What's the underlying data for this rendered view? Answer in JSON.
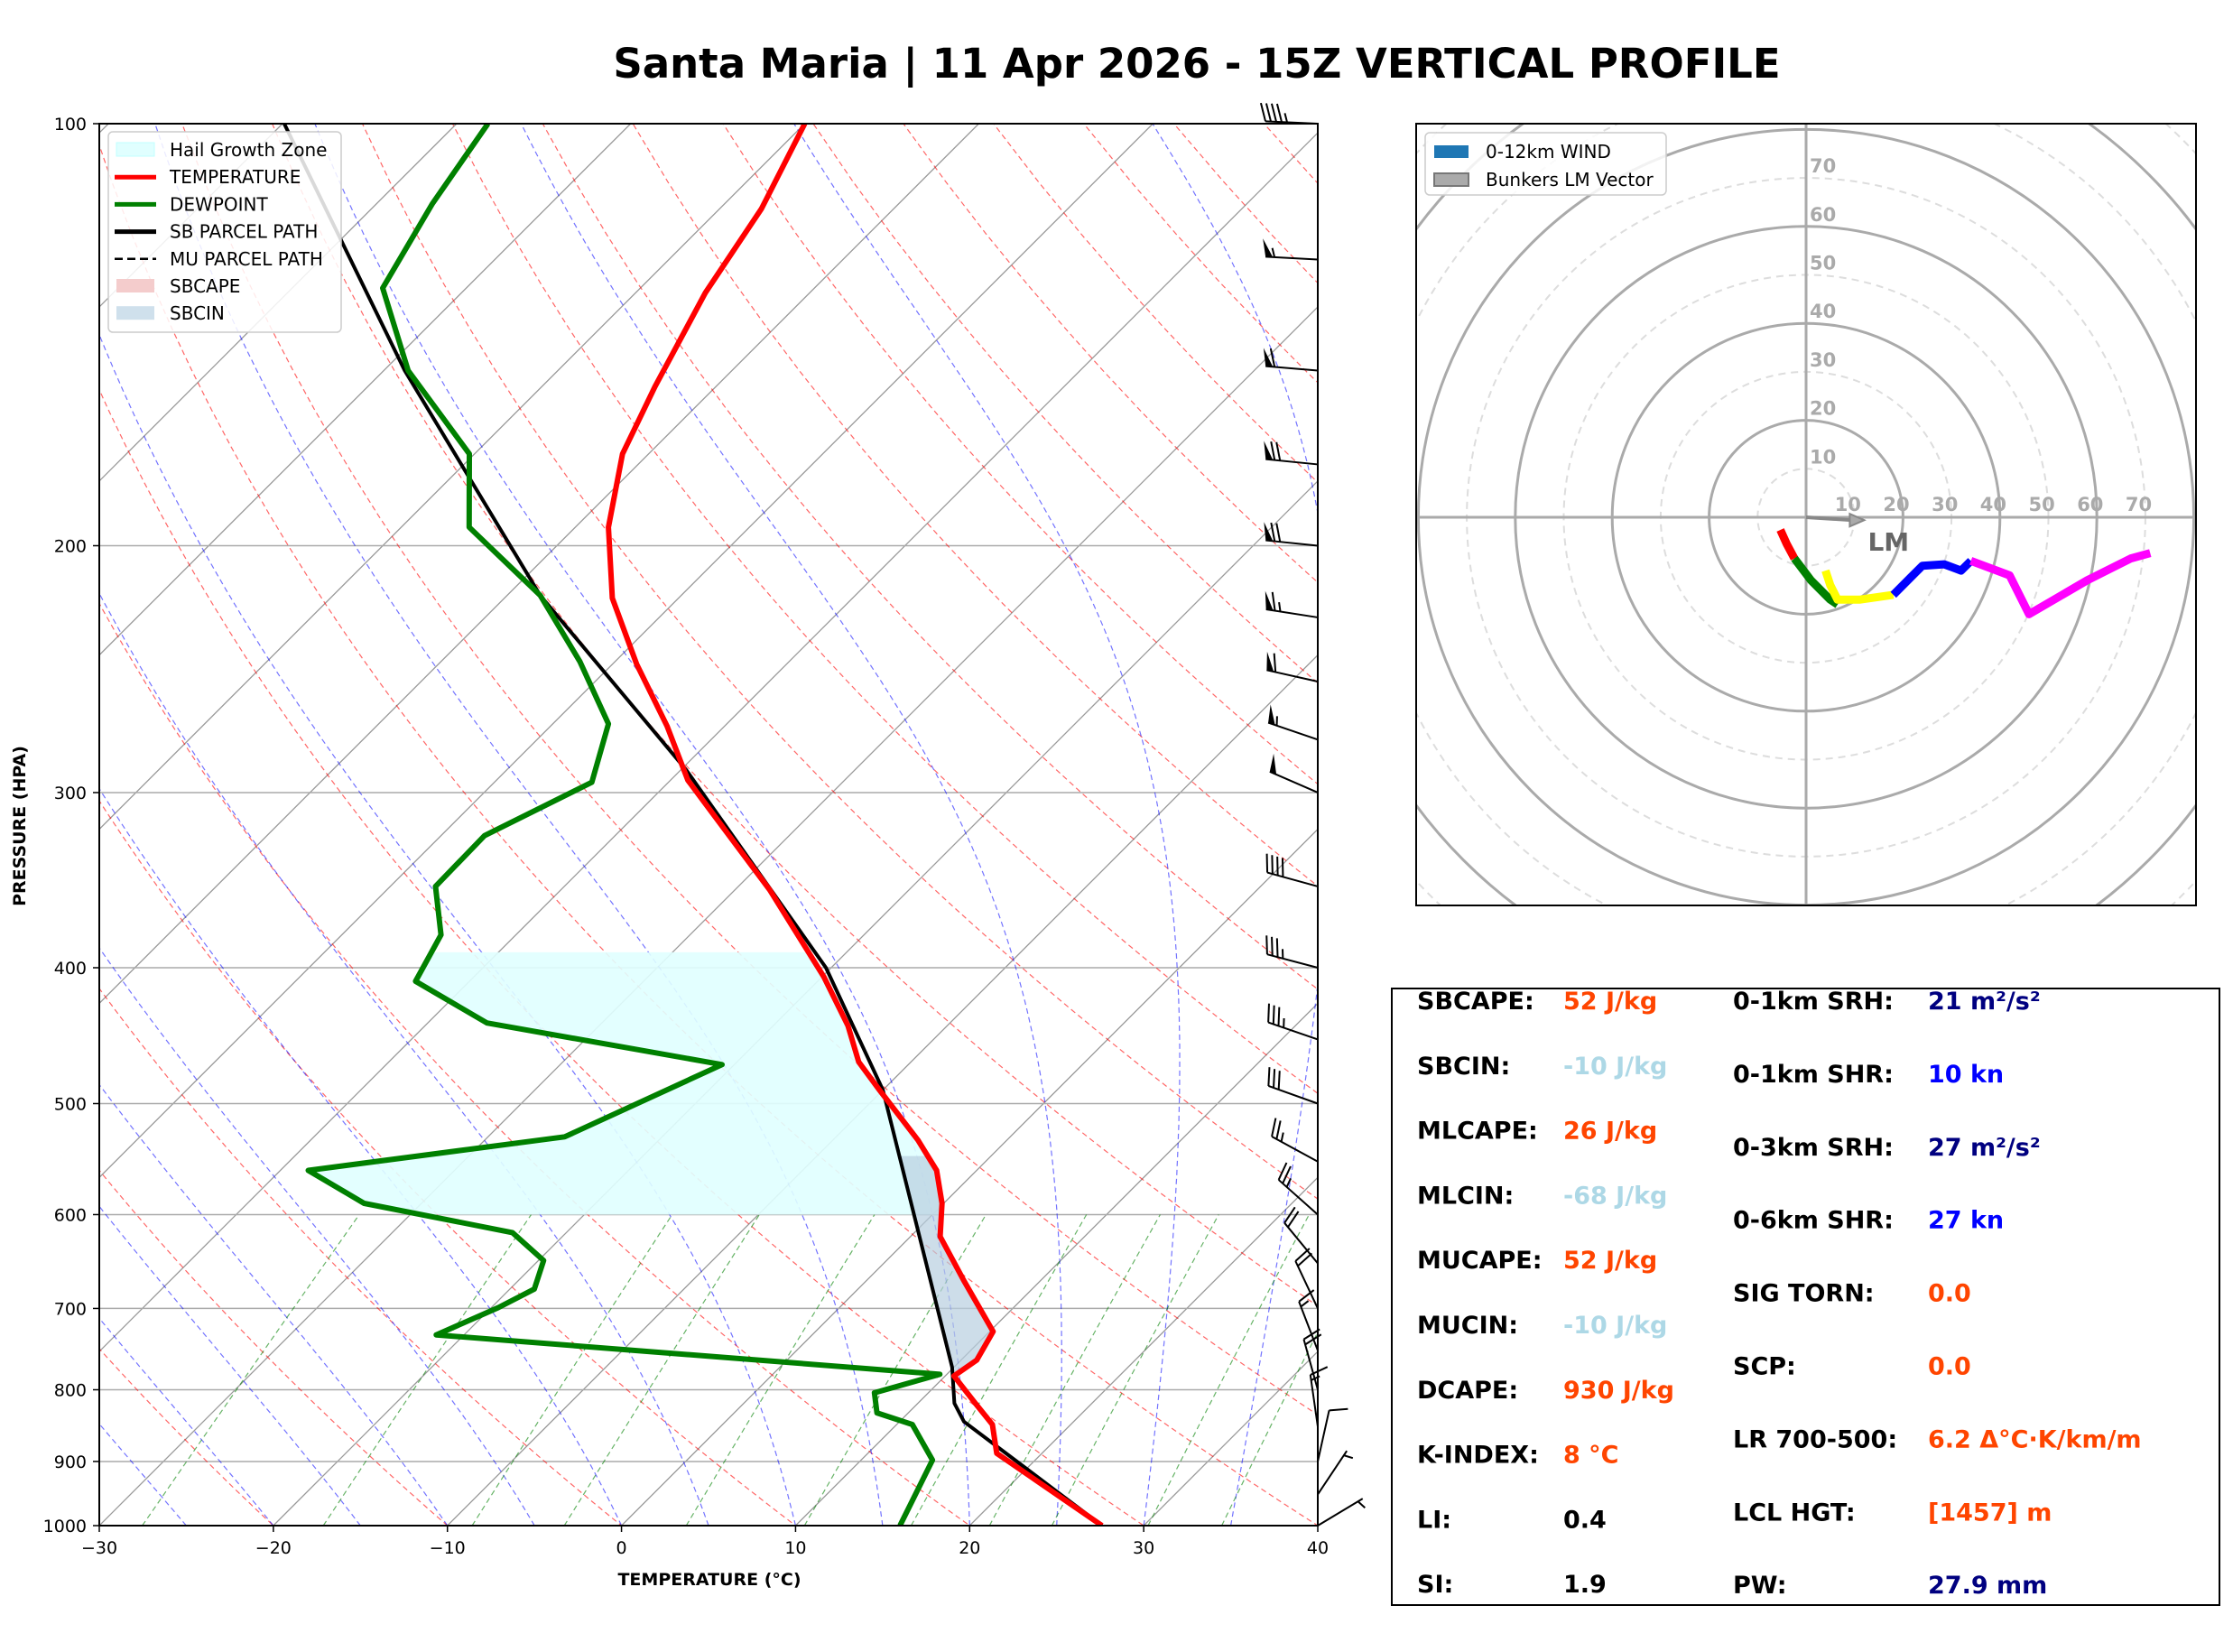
{
  "title": "Santa Maria | 11 Apr 2026 - 15Z VERTICAL PROFILE",
  "chart_data": [
    {
      "type": "line",
      "kind": "skew-t log-p",
      "xlabel": "TEMPERATURE (°C)",
      "ylabel": "PRESSURE (HPA)",
      "xlim": [
        -30,
        40
      ],
      "ylim": [
        1000,
        100
      ],
      "yscale": "log",
      "x_ticks": [
        "−30",
        "−20",
        "−10",
        "0",
        "10",
        "20",
        "30",
        "40"
      ],
      "x_tick_values": [
        -30,
        -20,
        -10,
        0,
        10,
        20,
        30,
        40
      ],
      "y_ticks": [
        "100",
        "200",
        "300",
        "400",
        "500",
        "600",
        "700",
        "800",
        "900",
        "1000"
      ],
      "y_tick_values": [
        100,
        200,
        300,
        400,
        500,
        600,
        700,
        800,
        900,
        1000
      ],
      "grid": true,
      "legend_position": "top-left",
      "legend": [
        {
          "label": "Hail Growth Zone",
          "style": "fill",
          "color": "#e0ffff"
        },
        {
          "label": "TEMPERATURE",
          "style": "line",
          "color": "#ff0000"
        },
        {
          "label": "DEWPOINT",
          "style": "line",
          "color": "#008000"
        },
        {
          "label": "SB PARCEL PATH",
          "style": "line",
          "color": "#000000"
        },
        {
          "label": "MU PARCEL PATH",
          "style": "dashed",
          "color": "#000000"
        },
        {
          "label": "SBCAPE",
          "style": "fill",
          "color": "#f4cccc"
        },
        {
          "label": "SBCIN",
          "style": "fill",
          "color": "#cfe0ec"
        }
      ],
      "series": [
        {
          "name": "TEMPERATURE",
          "color": "#ff0000",
          "pressure": [
            1000,
            888,
            847,
            818,
            782,
            762,
            727,
            670,
            622,
            589,
            558,
            531,
            489,
            467,
            440,
            406,
            352,
            294,
            269,
            243,
            218,
            194,
            172,
            154,
            132,
            115,
            100
          ],
          "values": [
            27.6,
            17.4,
            15.5,
            13.3,
            10.5,
            10.9,
            10.2,
            5.7,
            1.7,
            -0.1,
            -2.3,
            -5.1,
            -10.2,
            -13.0,
            -15.7,
            -19.9,
            -28,
            -39,
            -43.3,
            -48.6,
            -53.8,
            -58.1,
            -61.5,
            -63.5,
            -66,
            -67.6,
            -70
          ]
        },
        {
          "name": "DEWPOINT",
          "color": "#008000",
          "pressure": [
            1000,
            898,
            847,
            831,
            804,
            780,
            731,
            699,
            678,
            647,
            618,
            589,
            558,
            528,
            469,
            438,
            409,
            379,
            350,
            322,
            295,
            268,
            242,
            217,
            194,
            172,
            150,
            131,
            114,
            100
          ],
          "values": [
            16,
            14.1,
            10.9,
            8.2,
            6.9,
            9.6,
            -21.6,
            -19.6,
            -18.6,
            -19.7,
            -23.1,
            -33.3,
            -38.4,
            -25.6,
            -20.7,
            -36.6,
            -43.1,
            -44.3,
            -47.4,
            -47.5,
            -44.4,
            -46.8,
            -52,
            -58.1,
            -66.1,
            -70.3,
            -78.6,
            -84.8,
            -86.8,
            -88.2
          ]
        },
        {
          "name": "SB PARCEL PATH",
          "color": "#000000",
          "pressure": [
            1000,
            843,
            818,
            771,
            489,
            400,
            289,
            217,
            150,
            100
          ],
          "values": [
            27.6,
            13.7,
            12.1,
            9.9,
            -10,
            -20.3,
            -39.7,
            -58.1,
            -78.8,
            -99.9
          ]
        }
      ],
      "hail_growth_zone_hpa": [
        600,
        390
      ],
      "sbcin_layer_hpa": [
        790,
        545
      ],
      "wind_barbs": {
        "units": "kn",
        "pressure": [
          1000,
          950,
          900,
          850,
          800,
          750,
          700,
          650,
          600,
          550,
          500,
          450,
          400,
          350,
          300,
          275,
          250,
          225,
          200,
          175,
          150,
          125,
          100
        ],
        "u": [
          -5,
          -4,
          -2,
          2,
          5,
          5,
          8,
          14,
          18,
          22,
          28,
          32,
          34,
          40,
          46,
          50,
          58,
          64,
          68,
          70,
          60,
          55,
          45
        ],
        "v": [
          -3,
          -6,
          -9,
          -14,
          -18,
          -13,
          -17,
          -17,
          -16,
          -12,
          -10,
          -11,
          -9,
          -11,
          -20,
          -17,
          -13,
          -10,
          -7,
          -7,
          -5,
          -3,
          -2
        ]
      }
    },
    {
      "type": "line",
      "kind": "hodograph",
      "units": "kn",
      "ring_labels": [
        "10",
        "20",
        "30",
        "40",
        "50",
        "60",
        "70"
      ],
      "ring_values": [
        10,
        20,
        30,
        40,
        50,
        60,
        70
      ],
      "legend_position": "top-left",
      "legend": [
        {
          "label": "0-12km WIND",
          "color": "#1f77b4"
        },
        {
          "label": "Bunkers LM Vector",
          "color": "#aaaaaa"
        }
      ],
      "segments": [
        {
          "color": "#ff0000",
          "u": [
            -5.3,
            -4,
            -2.4
          ],
          "v": [
            -2.6,
            -5.5,
            -8.5
          ]
        },
        {
          "color": "#008000",
          "u": [
            -2.4,
            1,
            5,
            6.5
          ],
          "v": [
            -8.5,
            -13,
            -17,
            -18
          ]
        },
        {
          "color": "#ffff00",
          "u": [
            4,
            5,
            6.5,
            11,
            18
          ],
          "v": [
            -11,
            -14,
            -17,
            -17,
            -16
          ]
        },
        {
          "color": "#0000ff",
          "u": [
            18,
            22,
            24,
            28.5,
            32,
            34
          ],
          "v": [
            -16,
            -12,
            -10,
            -9.7,
            -11,
            -9
          ]
        },
        {
          "color": "#ff00ff",
          "u": [
            34,
            42,
            46,
            58,
            67,
            71
          ],
          "v": [
            -9,
            -12,
            -20,
            -13,
            -8.5,
            -7.4
          ]
        }
      ],
      "bunkers_lm": {
        "label": "LM",
        "u": 12,
        "v": -0.6
      }
    }
  ],
  "indices": {
    "left": [
      {
        "label": "SBCAPE:",
        "value": "52 J/kg",
        "color": "#ff4500"
      },
      {
        "label": "SBCIN:",
        "value": "-10 J/kg",
        "color": "#add8e6"
      },
      {
        "label": "MLCAPE:",
        "value": "26 J/kg",
        "color": "#ff4500"
      },
      {
        "label": "MLCIN:",
        "value": "-68 J/kg",
        "color": "#add8e6"
      },
      {
        "label": "MUCAPE:",
        "value": "52 J/kg",
        "color": "#ff4500"
      },
      {
        "label": "MUCIN:",
        "value": "-10 J/kg",
        "color": "#add8e6"
      },
      {
        "label": "DCAPE:",
        "value": "930 J/kg",
        "color": "#ff4500"
      },
      {
        "label": "K-INDEX:",
        "value": "8 °C",
        "color": "#ff4500"
      },
      {
        "label": "LI:",
        "value": "0.4",
        "color": "#000000"
      },
      {
        "label": "SI:",
        "value": "1.9",
        "color": "#000000"
      }
    ],
    "right": [
      {
        "label": "0-1km SRH:",
        "value": "21 m²/s²",
        "color": "#000080"
      },
      {
        "label": "0-1km SHR:",
        "value": "10 kn",
        "color": "#0000ff"
      },
      {
        "label": "0-3km SRH:",
        "value": "27 m²/s²",
        "color": "#000080"
      },
      {
        "label": "0-6km SHR:",
        "value": "27 kn",
        "color": "#0000ff"
      },
      {
        "label": "SIG TORN:",
        "value": "0.0",
        "color": "#ff4500"
      },
      {
        "label": "SCP:",
        "value": "0.0",
        "color": "#ff4500"
      },
      {
        "label": "LR 700-500:",
        "value": "6.2 Δ°C·K/km/m",
        "color": "#ff4500"
      },
      {
        "label": "LCL HGT:",
        "value": "[1457] m",
        "color": "#ff4500"
      },
      {
        "label": "PW:",
        "value": "27.9 mm",
        "color": "#000080"
      }
    ]
  }
}
